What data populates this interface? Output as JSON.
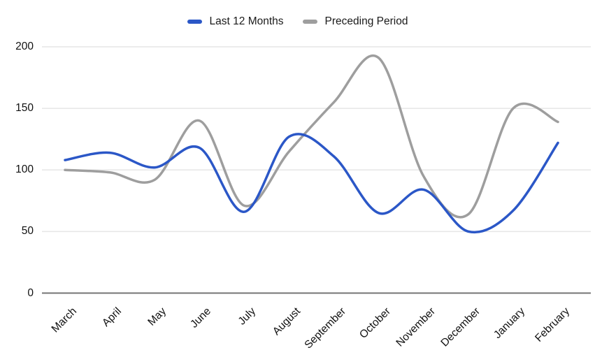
{
  "legend": {
    "items": [
      {
        "label": "Last 12 Months",
        "color": "#2b57c7"
      },
      {
        "label": "Preceding Period",
        "color": "#9e9e9e"
      }
    ]
  },
  "chart_data": {
    "type": "line",
    "curve": "smooth",
    "title": "",
    "xlabel": "",
    "ylabel": "",
    "categories": [
      "March",
      "April",
      "May",
      "June",
      "July",
      "August",
      "September",
      "October",
      "November",
      "December",
      "January",
      "February"
    ],
    "series": [
      {
        "name": "Last 12 Months",
        "color": "#2b57c7",
        "values": [
          108,
          114,
          102,
          118,
          66,
          127,
          111,
          65,
          84,
          50,
          67,
          122
        ]
      },
      {
        "name": "Preceding Period",
        "color": "#9e9e9e",
        "values": [
          100,
          98,
          92,
          140,
          71,
          115,
          155,
          191,
          95,
          64,
          150,
          139
        ]
      }
    ],
    "ylim": [
      0,
      200
    ],
    "yticks": [
      0,
      50,
      100,
      150,
      200
    ],
    "grid": true,
    "legend_position": "top",
    "colors": {
      "grid_color": "#e6e6e6",
      "axis_color": "#757575",
      "label_color": "#111111",
      "background": "#ffffff"
    }
  }
}
